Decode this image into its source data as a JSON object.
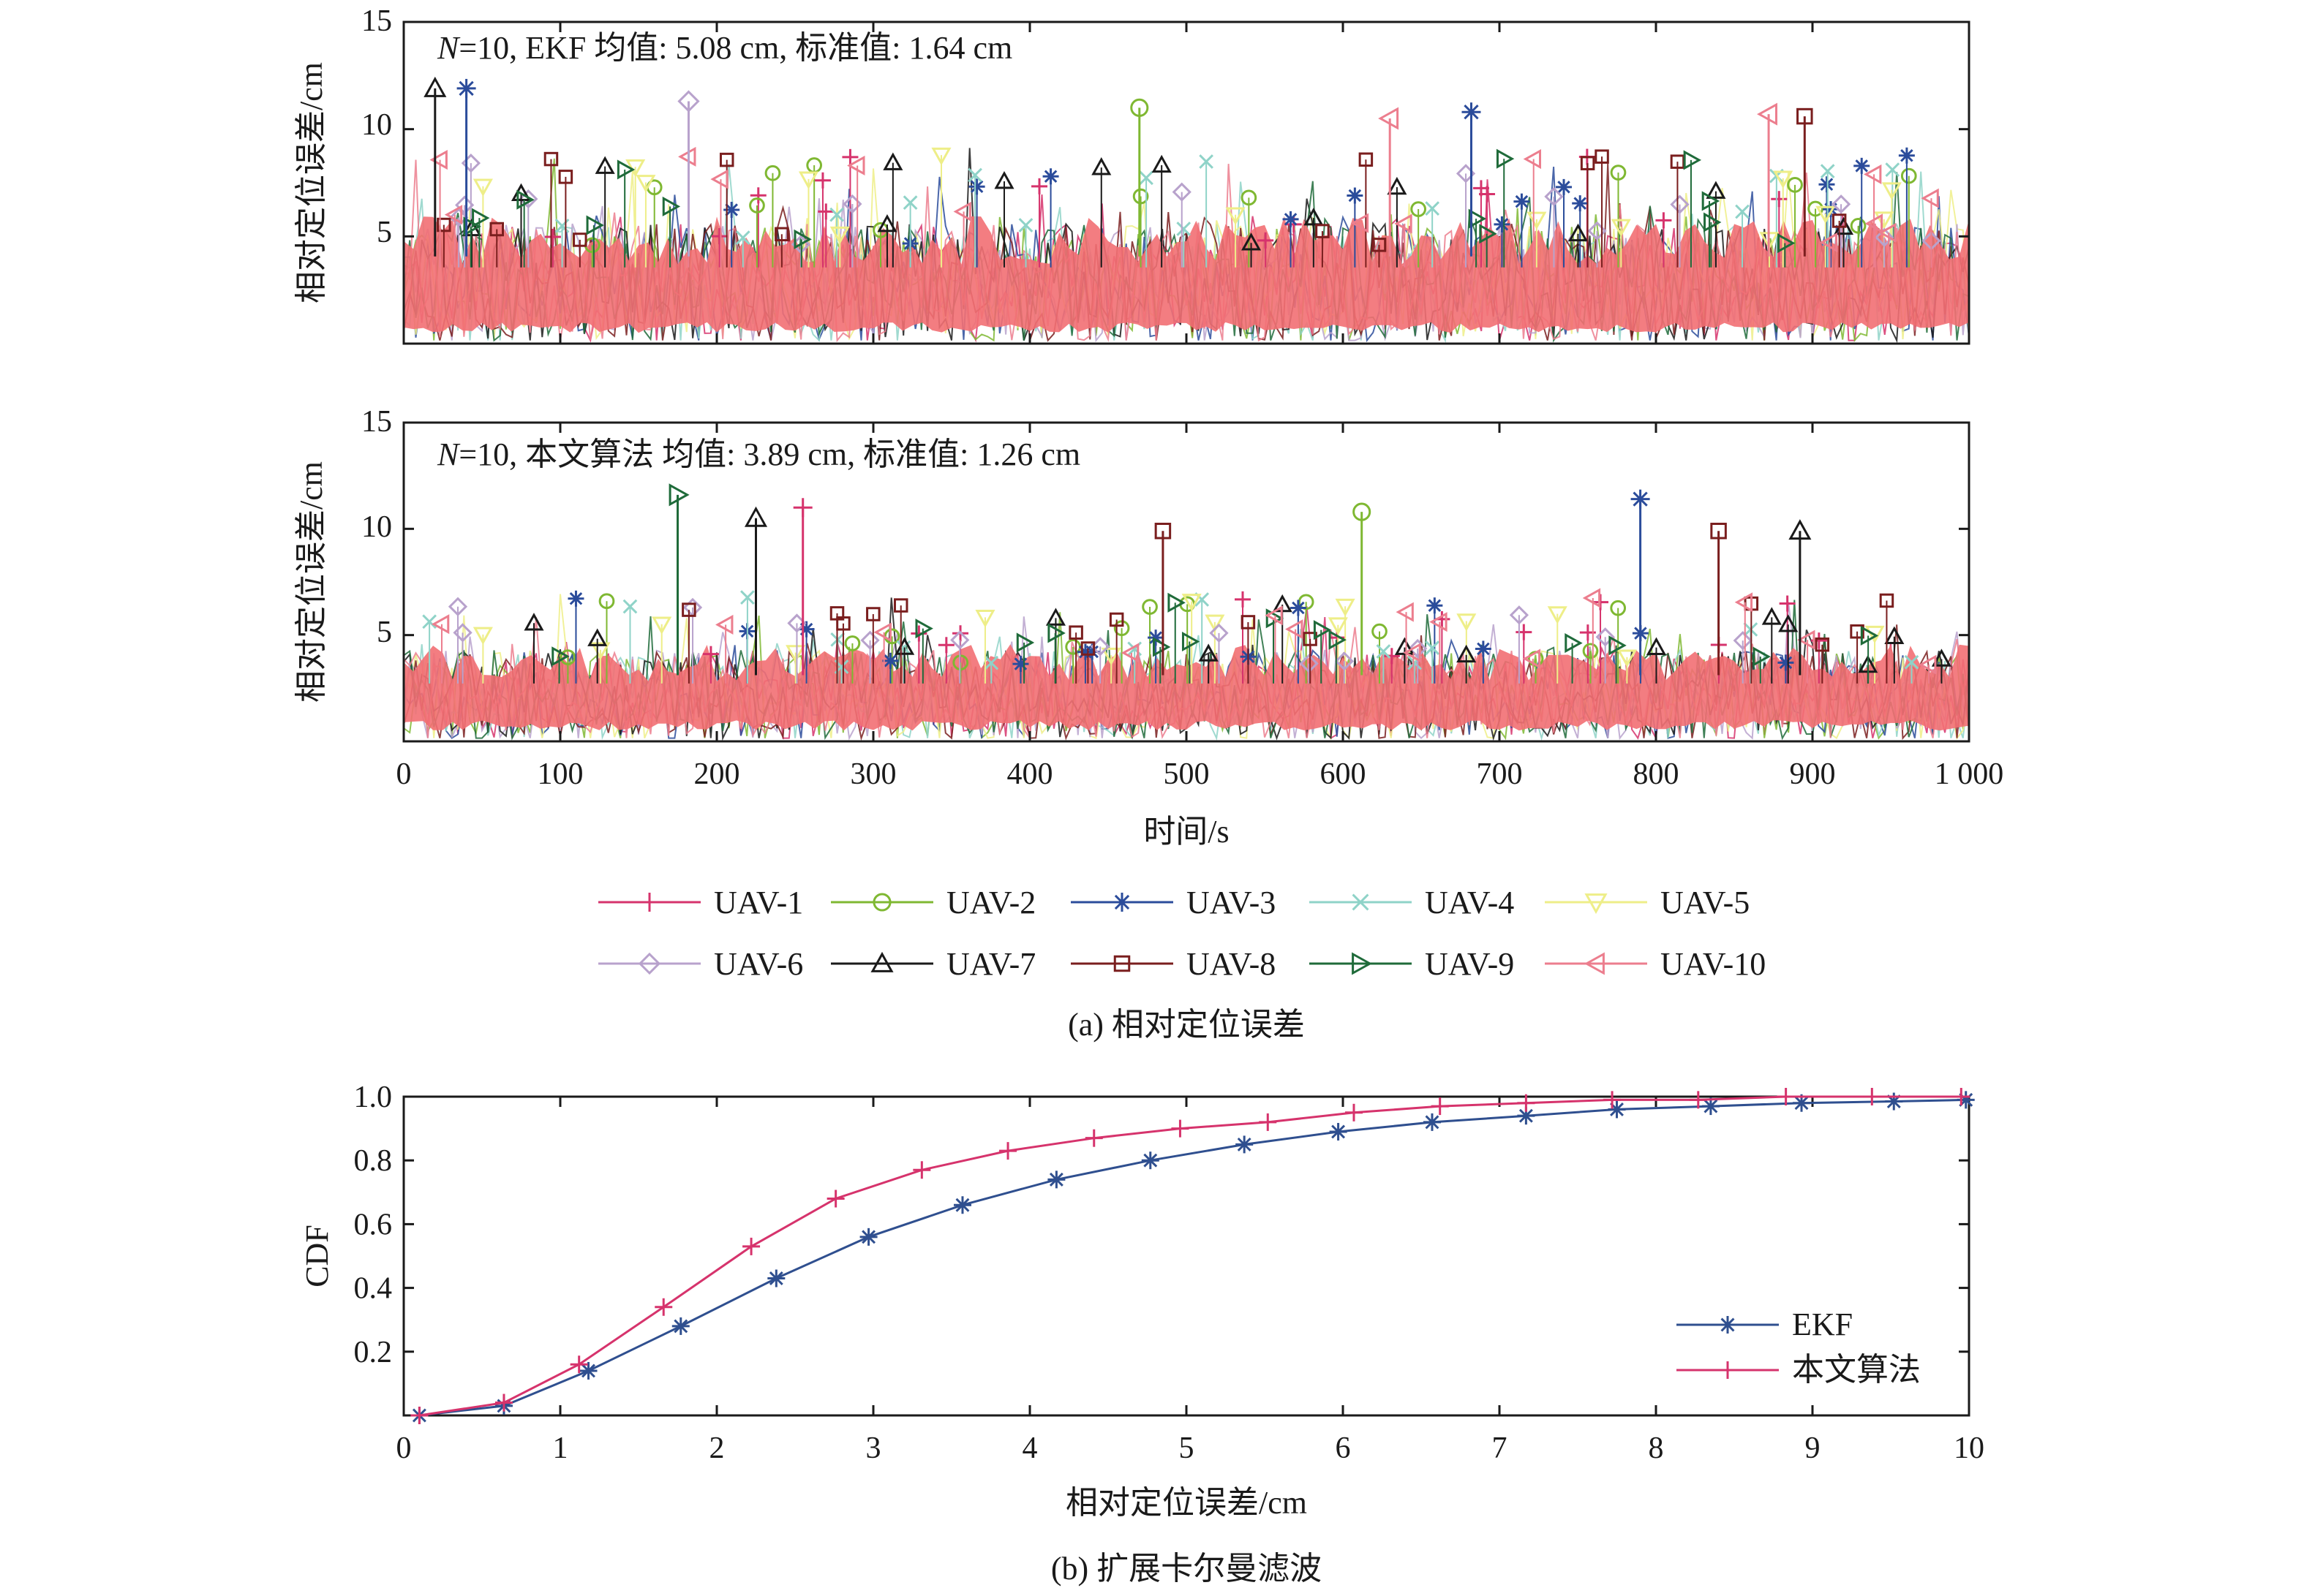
{
  "chart_data": [
    {
      "type": "line",
      "panel": "a-top",
      "annotation": {
        "n_var": "N",
        "rest": "=10, EKF  均值: 5.08 cm, 标准值: 1.64 cm"
      },
      "ylabel": "相对定位误差/cm",
      "xlabel": "",
      "xlim": [
        0,
        1000
      ],
      "ylim": [
        0,
        15
      ],
      "yticks": [
        "5",
        "10",
        "15"
      ],
      "xticks": [],
      "mean": 5.08,
      "std": 1.64,
      "series_names": [
        "UAV-1",
        "UAV-2",
        "UAV-3",
        "UAV-4",
        "UAV-5",
        "UAV-6",
        "UAV-7",
        "UAV-8",
        "UAV-9",
        "UAV-10"
      ],
      "peaks": [
        {
          "series": "UAV-7",
          "x": 20,
          "y": 11.9
        },
        {
          "series": "UAV-3",
          "x": 40,
          "y": 11.9
        },
        {
          "series": "UAV-6",
          "x": 182,
          "y": 11.3
        },
        {
          "series": "UAV-2",
          "x": 470,
          "y": 11.0
        },
        {
          "series": "UAV-3",
          "x": 682,
          "y": 10.8
        },
        {
          "series": "UAV-10",
          "x": 630,
          "y": 10.5
        },
        {
          "series": "UAV-10",
          "x": 872,
          "y": 10.7
        },
        {
          "series": "UAV-8",
          "x": 895,
          "y": 10.6
        }
      ]
    },
    {
      "type": "line",
      "panel": "a-bottom",
      "annotation": {
        "n_var": "N",
        "rest": "=10, 本文算法  均值: 3.89 cm, 标准值: 1.26 cm"
      },
      "ylabel": "相对定位误差/cm",
      "xlabel": "时间/s",
      "xlim": [
        0,
        1000
      ],
      "ylim": [
        0,
        15
      ],
      "yticks": [
        "5",
        "10",
        "15"
      ],
      "xticks": [
        "0",
        "100",
        "200",
        "300",
        "400",
        "500",
        "600",
        "700",
        "800",
        "900",
        "1 000"
      ],
      "mean": 3.89,
      "std": 1.26,
      "series_names": [
        "UAV-1",
        "UAV-2",
        "UAV-3",
        "UAV-4",
        "UAV-5",
        "UAV-6",
        "UAV-7",
        "UAV-8",
        "UAV-9",
        "UAV-10"
      ],
      "peaks": [
        {
          "series": "UAV-9",
          "x": 175,
          "y": 11.6
        },
        {
          "series": "UAV-1",
          "x": 255,
          "y": 11.0
        },
        {
          "series": "UAV-2",
          "x": 612,
          "y": 10.8
        },
        {
          "series": "UAV-3",
          "x": 790,
          "y": 11.4
        },
        {
          "series": "UAV-7",
          "x": 225,
          "y": 10.5
        },
        {
          "series": "UAV-8",
          "x": 485,
          "y": 9.9
        },
        {
          "series": "UAV-8",
          "x": 840,
          "y": 9.9
        },
        {
          "series": "UAV-7",
          "x": 892,
          "y": 9.9
        }
      ]
    },
    {
      "type": "line",
      "panel": "b",
      "xlabel": "相对定位误差/cm",
      "ylabel": "CDF",
      "xlim": [
        0,
        10
      ],
      "ylim": [
        0,
        1.0
      ],
      "xticks": [
        "0",
        "1",
        "2",
        "3",
        "4",
        "5",
        "6",
        "7",
        "8",
        "9",
        "10"
      ],
      "yticks": [
        "0.2",
        "0.4",
        "0.6",
        "0.8",
        "1.0"
      ],
      "legend_position": "bottom-right",
      "series": [
        {
          "name": "EKF",
          "color": "#2f4f8f",
          "marker": "asterisk",
          "x": [
            0.1,
            0.64,
            1.18,
            1.77,
            2.38,
            2.97,
            3.57,
            4.17,
            4.77,
            5.37,
            5.97,
            6.57,
            7.17,
            7.75,
            8.35,
            8.93,
            9.52,
            9.98
          ],
          "y": [
            0.0,
            0.03,
            0.14,
            0.28,
            0.43,
            0.56,
            0.66,
            0.74,
            0.8,
            0.85,
            0.89,
            0.92,
            0.94,
            0.96,
            0.97,
            0.98,
            0.985,
            0.99
          ]
        },
        {
          "name": "本文算法",
          "color": "#d6336c",
          "marker": "plus",
          "x": [
            0.1,
            0.64,
            1.12,
            1.66,
            2.22,
            2.76,
            3.31,
            3.86,
            4.41,
            4.96,
            5.52,
            6.07,
            6.62,
            7.17,
            7.72,
            8.27,
            8.83,
            9.38,
            9.95
          ],
          "y": [
            0.0,
            0.04,
            0.16,
            0.34,
            0.53,
            0.68,
            0.77,
            0.83,
            0.87,
            0.9,
            0.92,
            0.95,
            0.97,
            0.98,
            0.99,
            0.99,
            1.0,
            1.0,
            1.0
          ]
        }
      ]
    }
  ],
  "legend_a": {
    "items": [
      {
        "name": "UAV-1",
        "color": "#d6336c",
        "marker": "plus"
      },
      {
        "name": "UAV-2",
        "color": "#7fb832",
        "marker": "circle"
      },
      {
        "name": "UAV-3",
        "color": "#2b4c9b",
        "marker": "asterisk"
      },
      {
        "name": "UAV-4",
        "color": "#8fd3c8",
        "marker": "x"
      },
      {
        "name": "UAV-5",
        "color": "#eeee88",
        "marker": "triangle-down"
      },
      {
        "name": "UAV-6",
        "color": "#b8a2cc",
        "marker": "diamond"
      },
      {
        "name": "UAV-7",
        "color": "#1a1a1a",
        "marker": "triangle-up"
      },
      {
        "name": "UAV-8",
        "color": "#7a1e1e",
        "marker": "square"
      },
      {
        "name": "UAV-9",
        "color": "#1f6b3a",
        "marker": "triangle-right"
      },
      {
        "name": "UAV-10",
        "color": "#ec7e8e",
        "marker": "triangle-left"
      }
    ]
  },
  "captions": {
    "a": "(a) 相对定位误差",
    "b": "(b) 扩展卡尔曼滤波"
  },
  "colors": {
    "band_fill": "#f26f73",
    "axis": "#1a1a1a"
  }
}
